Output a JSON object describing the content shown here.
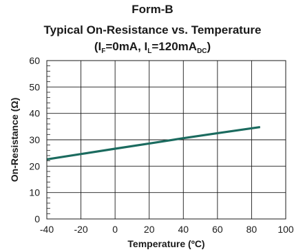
{
  "chart_data": {
    "type": "line",
    "title": "Form-B",
    "subtitle": "Typical On-Resistance vs. Temperature",
    "conditions": {
      "open": "(I",
      "if_sub": "F",
      "mid": "=0mA, I",
      "il_sub": "L",
      "mid2": "=120mA",
      "dc_sub": "DC",
      "close": ")"
    },
    "xlabel": "Temperature (ºC)",
    "ylabel": "On-Resistance (Ω)",
    "xlim": [
      -40,
      100
    ],
    "ylim": [
      0,
      60
    ],
    "x_ticks": [
      -40,
      -20,
      0,
      20,
      40,
      60,
      80,
      100
    ],
    "y_ticks": [
      0,
      10,
      20,
      30,
      40,
      50,
      60
    ],
    "grid": true,
    "series": [
      {
        "x": [
          -40,
          -20,
          0,
          20,
          40,
          60,
          85
        ],
        "y": [
          22.6,
          24.6,
          26.6,
          28.6,
          30.6,
          32.5,
          34.8
        ],
        "color": "#1b6b5f"
      }
    ]
  }
}
